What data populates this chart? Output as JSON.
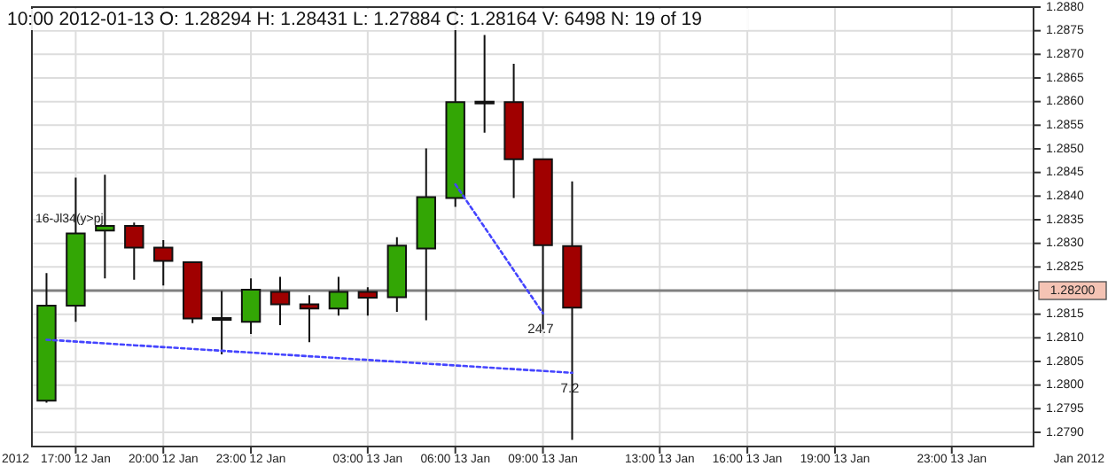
{
  "chart_data": {
    "type": "candlestick",
    "title": "10:00 2012-01-13 O: 1.28294 H: 1.28431 L: 1.27884 C: 1.28164 V: 6498 N: 19 of 19",
    "x": [
      "2012-01-12T16:00",
      "2012-01-12T17:00",
      "2012-01-12T18:00",
      "2012-01-12T19:00",
      "2012-01-12T20:00",
      "2012-01-12T21:00",
      "2012-01-12T22:00",
      "2012-01-12T23:00",
      "2012-01-13T00:00",
      "2012-01-13T01:00",
      "2012-01-13T02:00",
      "2012-01-13T03:00",
      "2012-01-13T04:00",
      "2012-01-13T05:00",
      "2012-01-13T06:00",
      "2012-01-13T07:00",
      "2012-01-13T08:00",
      "2012-01-13T09:00",
      "2012-01-13T10:00"
    ],
    "ohlc": [
      [
        1.27967,
        1.28237,
        1.27963,
        1.28168
      ],
      [
        1.28168,
        1.28439,
        1.28134,
        1.28321
      ],
      [
        1.28327,
        1.28445,
        1.28226,
        1.28337
      ],
      [
        1.28337,
        1.28344,
        1.28223,
        1.28291
      ],
      [
        1.28291,
        1.28307,
        1.28211,
        1.28263
      ],
      [
        1.2826,
        1.28262,
        1.28131,
        1.28141
      ],
      [
        1.2814,
        1.28199,
        1.28065,
        1.28142
      ],
      [
        1.28134,
        1.28226,
        1.28108,
        1.28202
      ],
      [
        1.28197,
        1.28229,
        1.28127,
        1.28171
      ],
      [
        1.28171,
        1.2819,
        1.28091,
        1.28162
      ],
      [
        1.28162,
        1.28229,
        1.28147,
        1.28197
      ],
      [
        1.28197,
        1.28207,
        1.28147,
        1.28185
      ],
      [
        1.28186,
        1.28313,
        1.28155,
        1.28295
      ],
      [
        1.28289,
        1.28501,
        1.28137,
        1.28398
      ],
      [
        1.28396,
        1.28795,
        1.28377,
        1.28599
      ],
      [
        1.286,
        1.28741,
        1.28534,
        1.28599
      ],
      [
        1.28599,
        1.2868,
        1.28396,
        1.28478
      ],
      [
        1.28478,
        1.2848,
        1.28118,
        1.28296
      ],
      [
        1.28294,
        1.28431,
        1.27884,
        1.28164
      ]
    ],
    "colors": [
      "#33a605",
      "#33a605",
      "#33a605",
      "#a00000",
      "#a00000",
      "#a00000",
      "#33a605",
      "#33a605",
      "#a00000",
      "#a00000",
      "#33a605",
      "#a00000",
      "#33a605",
      "#33a605",
      "#33a605",
      "#a00000",
      "#a00000",
      "#a00000",
      "#a00000"
    ],
    "series": [
      {
        "type": "line",
        "color": "#4444ff",
        "x": [
          "2012-01-13T06:00",
          "2012-01-13T09:00"
        ],
        "values": [
          1.28425,
          1.28152
        ]
      },
      {
        "type": "line",
        "color": "#4444ff",
        "x": [
          "2012-01-12T16:00",
          "2012-01-13T10:00"
        ],
        "values": [
          1.28096,
          1.28026
        ]
      }
    ],
    "line_style": "dotted",
    "xlim": [
      "2012-01-12T15:30",
      "2012-01-14T01:48"
    ],
    "xticks": [
      {
        "value": "2012-01-12T17:00",
        "label": "17:00 12 Jan"
      },
      {
        "value": "2012-01-12T20:00",
        "label": "20:00 12 Jan"
      },
      {
        "value": "2012-01-12T23:00",
        "label": "23:00 12 Jan"
      },
      {
        "value": "2012-01-13T03:00",
        "label": "03:00 13 Jan"
      },
      {
        "value": "2012-01-13T06:00",
        "label": "06:00 13 Jan"
      },
      {
        "value": "2012-01-13T09:00",
        "label": "09:00 13 Jan"
      },
      {
        "value": "2012-01-13T13:00",
        "label": "13:00 13 Jan"
      },
      {
        "value": "2012-01-13T16:00",
        "label": "16:00 13 Jan"
      },
      {
        "value": "2012-01-13T19:00",
        "label": "19:00 13 Jan"
      },
      {
        "value": "2012-01-13T23:00",
        "label": "23:00 13 Jan"
      }
    ],
    "ylim": [
      1.2787,
      1.288
    ],
    "yticks": [
      {
        "value": 1.279,
        "label": "1.2790"
      },
      1.2795,
      {
        "value": 1.28,
        "label": "1.2800"
      },
      1.2805,
      {
        "value": 1.281,
        "label": "1.2810"
      },
      1.2815,
      {
        "value": 1.282,
        "label": null
      },
      1.2825,
      {
        "value": 1.283,
        "label": "1.2830"
      },
      1.2835,
      {
        "value": 1.284,
        "label": "1.2840"
      },
      1.2845,
      {
        "value": 1.285,
        "label": "1.2850"
      },
      1.2855,
      {
        "value": 1.286,
        "label": "1.2860"
      },
      1.2865,
      {
        "value": 1.287,
        "label": "1.2870"
      },
      1.2875,
      {
        "value": 1.288,
        "label": "1.2880"
      }
    ],
    "grid": true,
    "ref_lines": [
      {
        "axis": "y",
        "value": 1.282,
        "label": "1.28200",
        "color": "#808080"
      }
    ],
    "annotations": [
      {
        "text": "24.7",
        "x": "2012-01-13T09:00",
        "y": 1.28152
      },
      {
        "text": "7.2",
        "x": "2012-01-13T10:00",
        "y": 1.28026
      },
      "16-Jl34(y>pj",
      "2012",
      "Jan 2012"
    ]
  }
}
